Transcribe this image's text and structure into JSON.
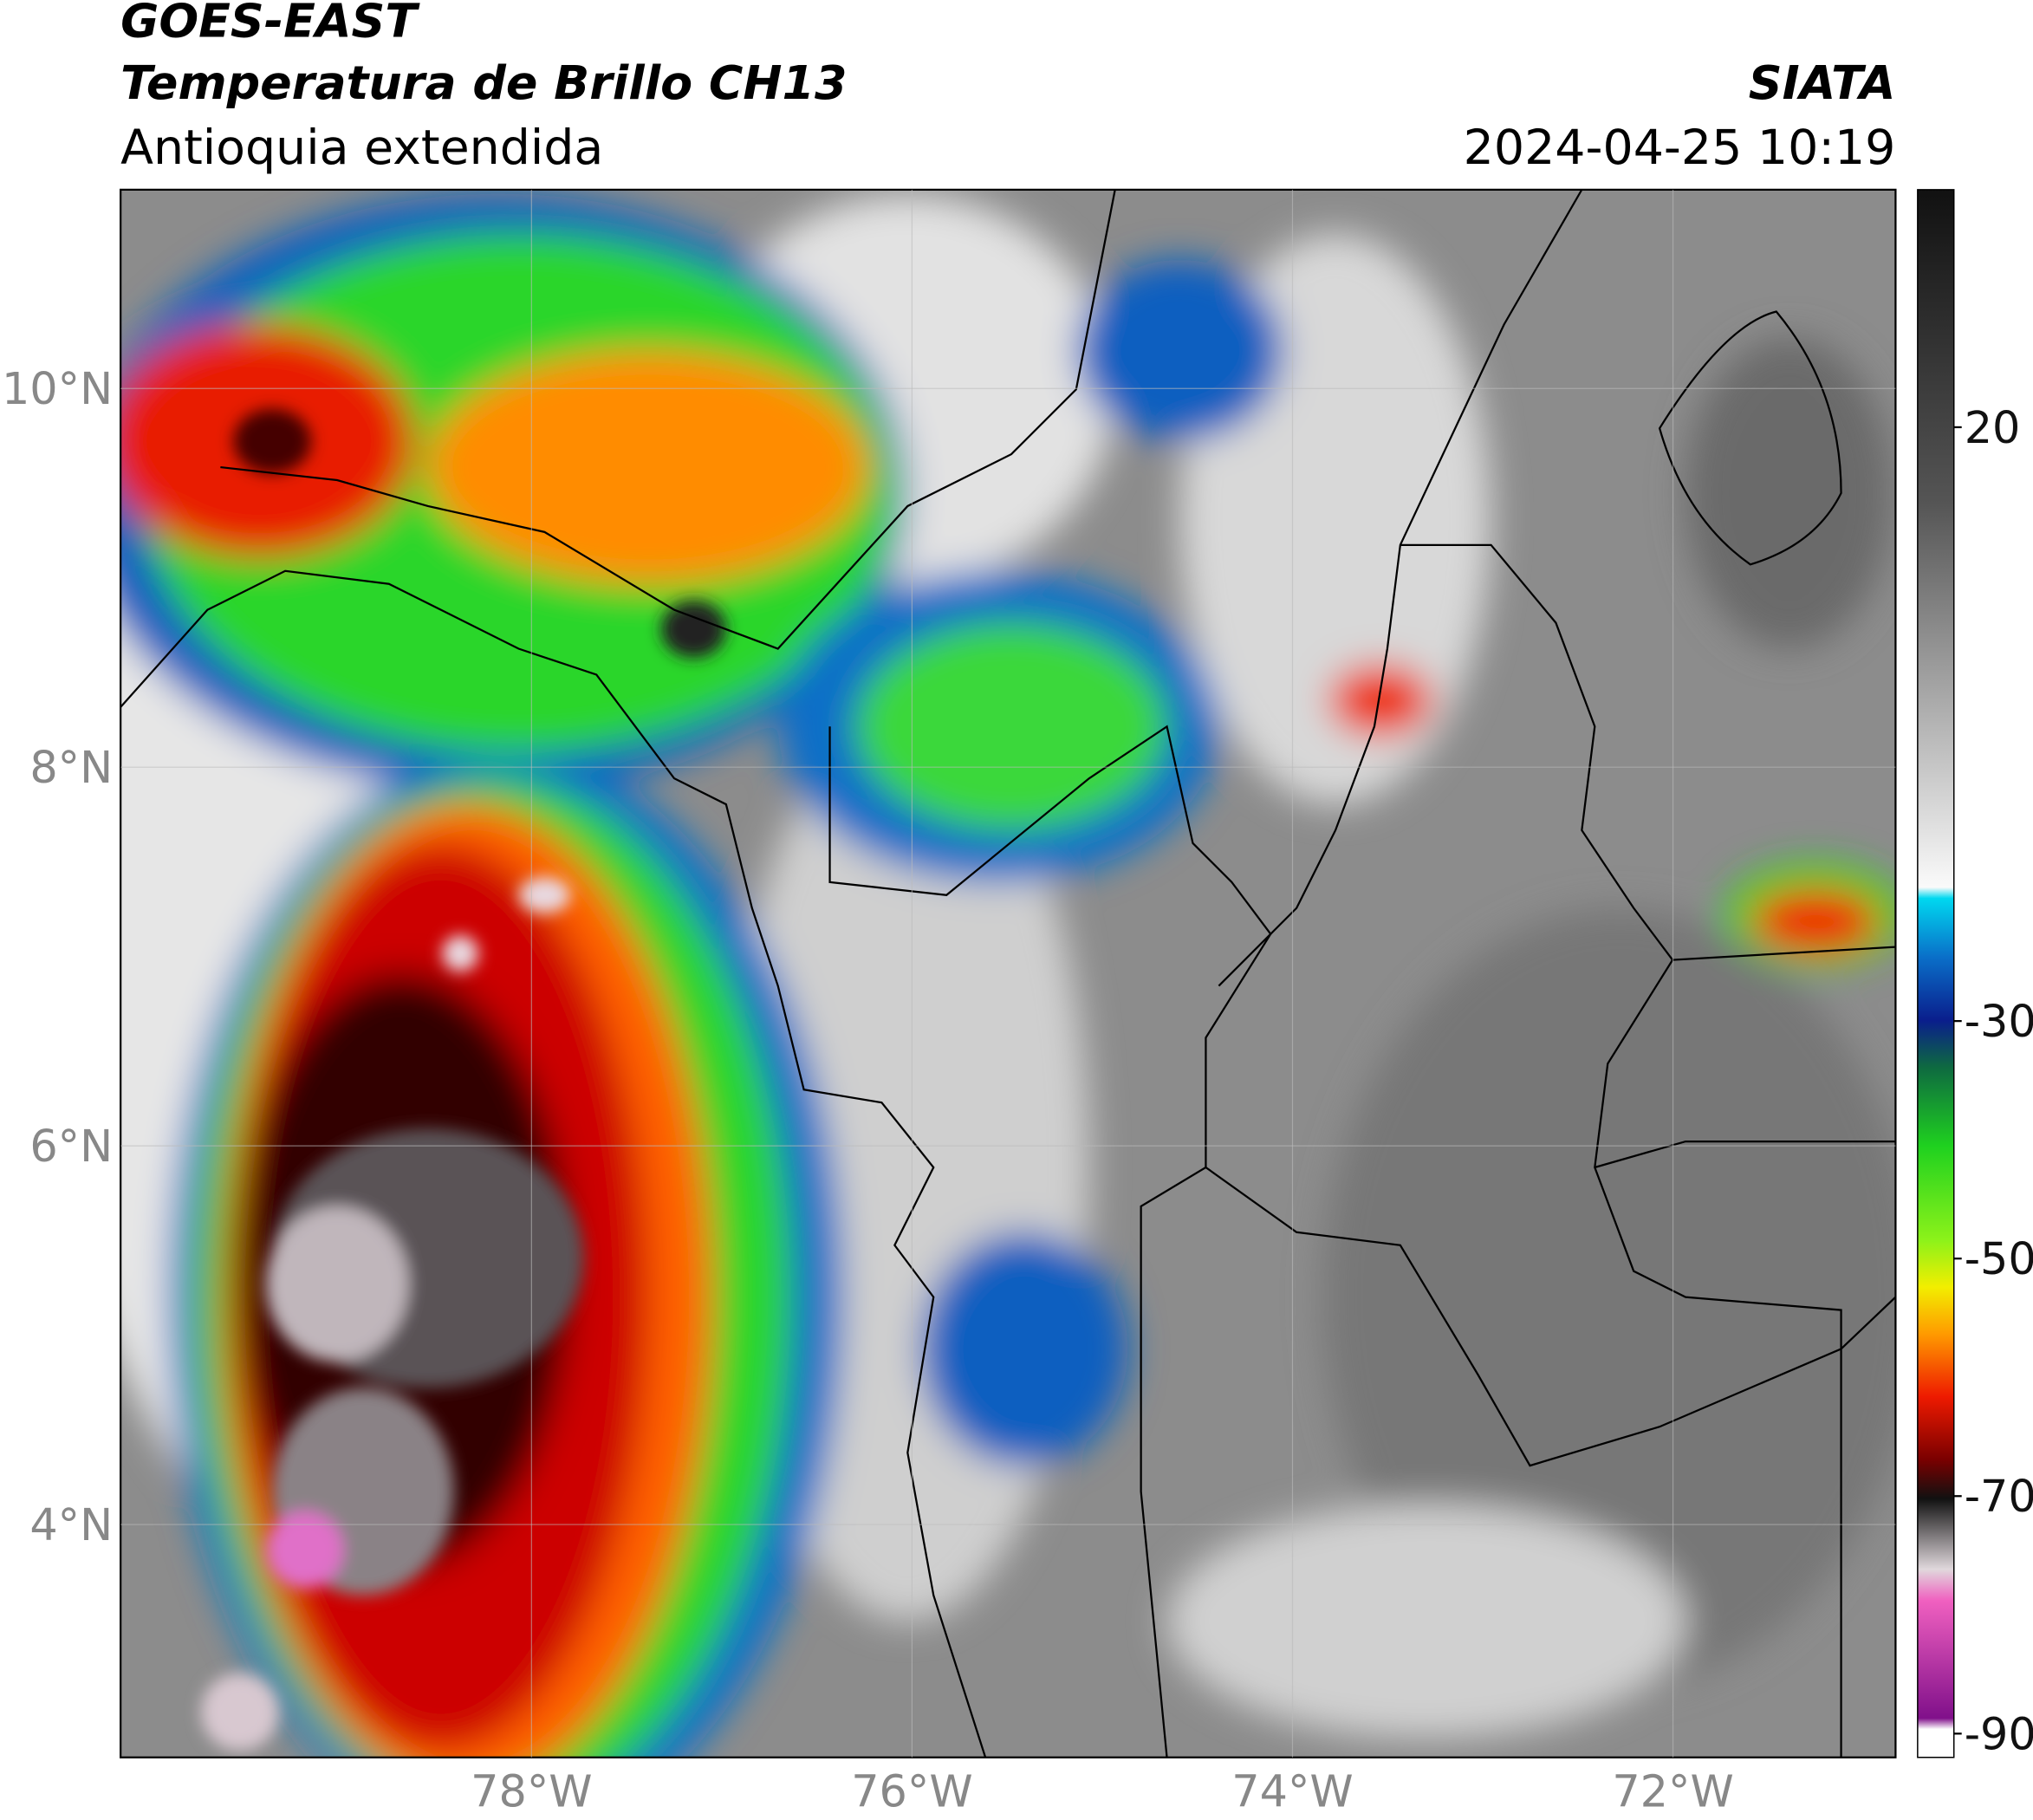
{
  "header": {
    "title": "GOES-EAST",
    "subtitle": "Temperatura de Brillo CH13",
    "region": "Antioquia extendida",
    "source": "SIATA",
    "datetime": "2024-04-25 10:19"
  },
  "map": {
    "latlim": [
      2.77,
      11.05
    ],
    "lonlim": [
      -80.16,
      -70.83
    ],
    "lat_ticks": [
      {
        "value": 10,
        "label": "10°N"
      },
      {
        "value": 8,
        "label": "8°N"
      },
      {
        "value": 6,
        "label": "6°N"
      },
      {
        "value": 4,
        "label": "4°N"
      }
    ],
    "lon_ticks": [
      {
        "value": -78,
        "label": "78°W"
      },
      {
        "value": -76,
        "label": "76°W"
      },
      {
        "value": -74,
        "label": "74°W"
      },
      {
        "value": -72,
        "label": "72°W"
      }
    ]
  },
  "colorbar": {
    "lim": [
      -92,
      40
    ],
    "ticks": [
      20,
      -30,
      -50,
      -70,
      -90
    ]
  }
}
